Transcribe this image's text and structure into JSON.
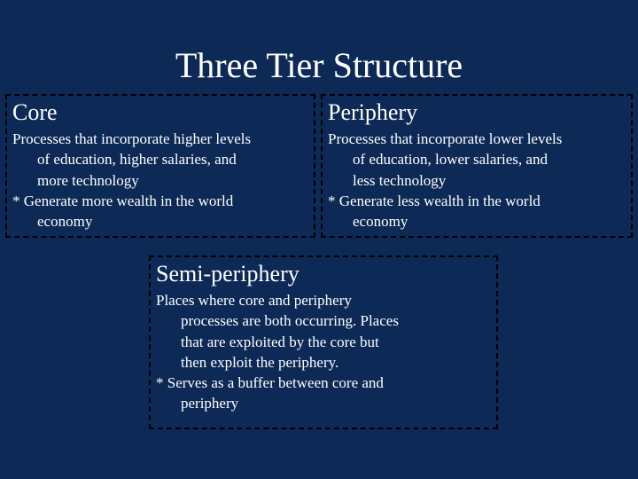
{
  "colors": {
    "background": "#0d2a57",
    "text": "#ffffff",
    "border": "#000000"
  },
  "typography": {
    "family": "Times New Roman",
    "title_fontsize": 40,
    "heading_fontsize": 26,
    "body_fontsize": 17
  },
  "title": "Three Tier Structure",
  "boxes": {
    "core": {
      "heading": "Core",
      "line1": "Processes that incorporate higher levels",
      "line2": "of education, higher salaries, and",
      "line3": "more technology",
      "line4": "* Generate more wealth in the world",
      "line5": "economy"
    },
    "periphery": {
      "heading": "Periphery",
      "line1": "Processes that incorporate lower levels",
      "line2": "of education, lower salaries, and",
      "line3": "less technology",
      "line4": "* Generate less wealth in the world",
      "line5": "economy"
    },
    "semi": {
      "heading": "Semi-periphery",
      "line1": "Places where core and periphery",
      "line2": "processes are both occurring. Places",
      "line3": "that are exploited by the core but",
      "line4": "then exploit the periphery.",
      "line5": "* Serves as a buffer between core and",
      "line6": "periphery"
    }
  }
}
